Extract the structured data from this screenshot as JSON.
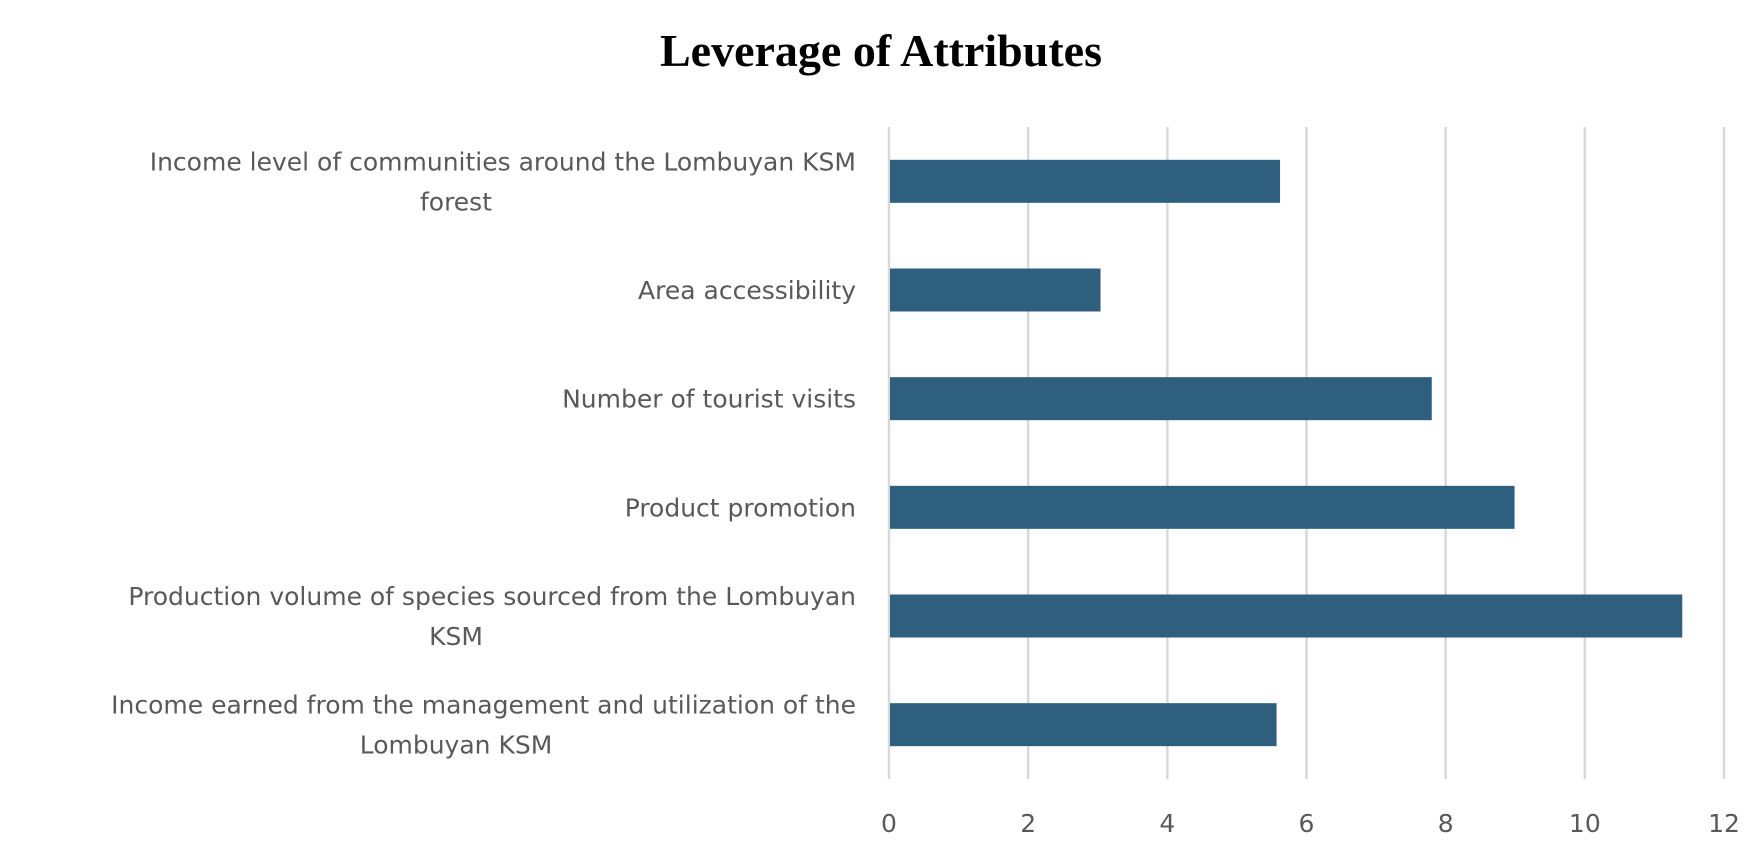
{
  "chart_data": {
    "type": "bar",
    "orientation": "horizontal",
    "title": "Leverage of Attributes",
    "categories": [
      [
        "Income level of communities around the Lombuyan KSM",
        "forest"
      ],
      [
        "Area accessibility"
      ],
      [
        "Number of tourist visits"
      ],
      [
        "Product promotion"
      ],
      [
        "Production volume of species sourced from the Lombuyan",
        "KSM"
      ],
      [
        "Income earned from the management and utilization of the",
        "Lombuyan KSM"
      ]
    ],
    "values": [
      5.62,
      3.04,
      7.8,
      8.99,
      11.4,
      5.57
    ],
    "xlim": [
      0,
      12
    ],
    "xticks": [
      "0",
      "2",
      "4",
      "6",
      "8",
      "10",
      "12"
    ],
    "xlabel": "",
    "ylabel": "",
    "grid": "vertical",
    "legend": "none",
    "bar_color": "#2E5F7E",
    "grid_color": "#D9D9D9"
  }
}
